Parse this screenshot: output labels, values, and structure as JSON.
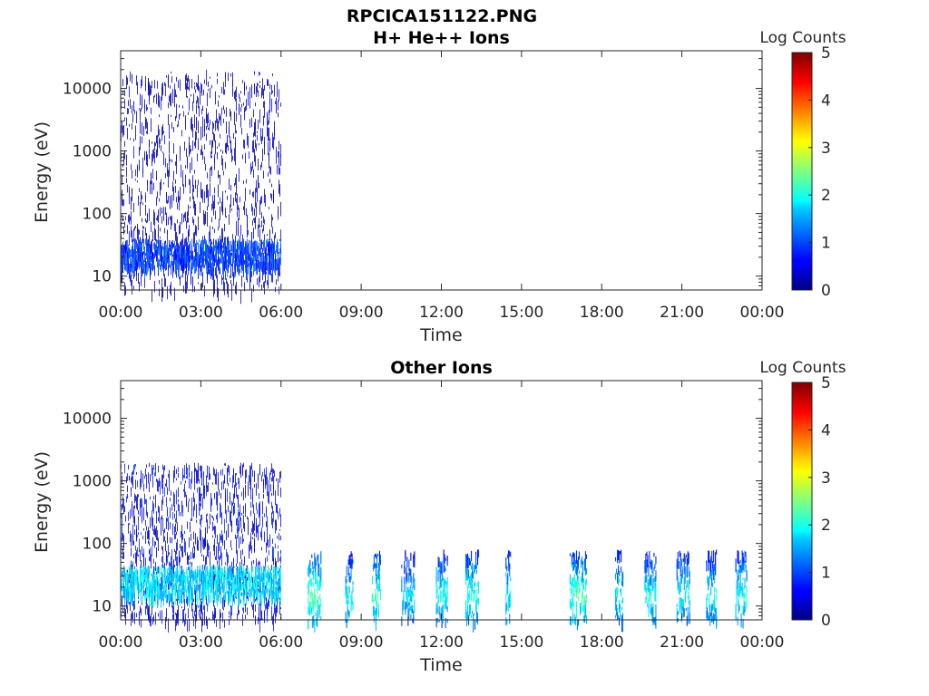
{
  "figure": {
    "title": "RPCICA151122.PNG"
  },
  "chart_data": [
    {
      "type": "heatmap",
      "title": "H+ He++ Ions",
      "xlabel": "Time",
      "ylabel": "Energy (eV)",
      "y_scale": "log",
      "ylim": [
        6,
        40000
      ],
      "xlim": [
        "00:00",
        "24:00"
      ],
      "x_ticks": [
        "00:00",
        "03:00",
        "06:00",
        "09:00",
        "12:00",
        "15:00",
        "18:00",
        "21:00",
        "00:00"
      ],
      "y_ticks": [
        {
          "value": 10,
          "label": "10"
        },
        {
          "value": 100,
          "label": "100"
        },
        {
          "value": 1000,
          "label": "1000"
        },
        {
          "value": 10000,
          "label": "10000"
        }
      ],
      "colorbar": {
        "title": "Log Counts",
        "min": 0,
        "max": 5,
        "ticks": [
          "0",
          "1",
          "2",
          "3",
          "4",
          "5"
        ],
        "colormap": "jet"
      },
      "data_regions": [
        {
          "start_hour": 0,
          "end_hour": 6,
          "energy_min": 6,
          "energy_max": 20000,
          "log_counts": 0.3
        },
        {
          "start_hour": 0,
          "end_hour": 6,
          "energy_min": 15,
          "energy_max": 40,
          "log_counts": 0.9
        }
      ]
    },
    {
      "type": "heatmap",
      "title": "Other Ions",
      "xlabel": "Time",
      "ylabel": "Energy (eV)",
      "y_scale": "log",
      "ylim": [
        6,
        40000
      ],
      "xlim": [
        "00:00",
        "24:00"
      ],
      "x_ticks": [
        "00:00",
        "03:00",
        "06:00",
        "09:00",
        "12:00",
        "15:00",
        "18:00",
        "21:00",
        "00:00"
      ],
      "y_ticks": [
        {
          "value": 10,
          "label": "10"
        },
        {
          "value": 100,
          "label": "100"
        },
        {
          "value": 1000,
          "label": "1000"
        },
        {
          "value": 10000,
          "label": "10000"
        }
      ],
      "colorbar": {
        "title": "Log Counts",
        "min": 0,
        "max": 5,
        "ticks": [
          "0",
          "1",
          "2",
          "3",
          "4",
          "5"
        ],
        "colormap": "jet"
      },
      "data_regions": [
        {
          "start_hour": 0,
          "end_hour": 6,
          "energy_min": 6,
          "energy_max": 2000,
          "log_counts": 0.5
        },
        {
          "start_hour": 0,
          "end_hour": 6,
          "energy_min": 15,
          "energy_max": 45,
          "log_counts": 1.7
        }
      ],
      "bursts": [
        {
          "start_hour": 7.0,
          "end_hour": 7.5,
          "energy_min": 6,
          "energy_max": 80,
          "peak_log_counts": 2.4
        },
        {
          "start_hour": 8.4,
          "end_hour": 8.7,
          "energy_min": 6,
          "energy_max": 80,
          "peak_log_counts": 1.8
        },
        {
          "start_hour": 9.4,
          "end_hour": 9.75,
          "energy_min": 6,
          "energy_max": 80,
          "peak_log_counts": 2.2
        },
        {
          "start_hour": 10.5,
          "end_hour": 11.0,
          "energy_min": 6,
          "energy_max": 80,
          "peak_log_counts": 1.7
        },
        {
          "start_hour": 11.8,
          "end_hour": 12.25,
          "energy_min": 6,
          "energy_max": 80,
          "peak_log_counts": 2.0
        },
        {
          "start_hour": 12.9,
          "end_hour": 13.4,
          "energy_min": 6,
          "energy_max": 80,
          "peak_log_counts": 2.1
        },
        {
          "start_hour": 14.4,
          "end_hour": 14.6,
          "energy_min": 6,
          "energy_max": 80,
          "peak_log_counts": 1.9
        },
        {
          "start_hour": 16.8,
          "end_hour": 17.45,
          "energy_min": 6,
          "energy_max": 80,
          "peak_log_counts": 2.3
        },
        {
          "start_hour": 18.5,
          "end_hour": 18.8,
          "energy_min": 6,
          "energy_max": 80,
          "peak_log_counts": 1.9
        },
        {
          "start_hour": 19.6,
          "end_hour": 20.05,
          "energy_min": 6,
          "energy_max": 80,
          "peak_log_counts": 2.0
        },
        {
          "start_hour": 20.8,
          "end_hour": 21.3,
          "energy_min": 6,
          "energy_max": 80,
          "peak_log_counts": 1.9
        },
        {
          "start_hour": 21.9,
          "end_hour": 22.3,
          "energy_min": 6,
          "energy_max": 80,
          "peak_log_counts": 1.8
        },
        {
          "start_hour": 23.0,
          "end_hour": 23.45,
          "energy_min": 6,
          "energy_max": 80,
          "peak_log_counts": 2.0
        }
      ]
    }
  ]
}
